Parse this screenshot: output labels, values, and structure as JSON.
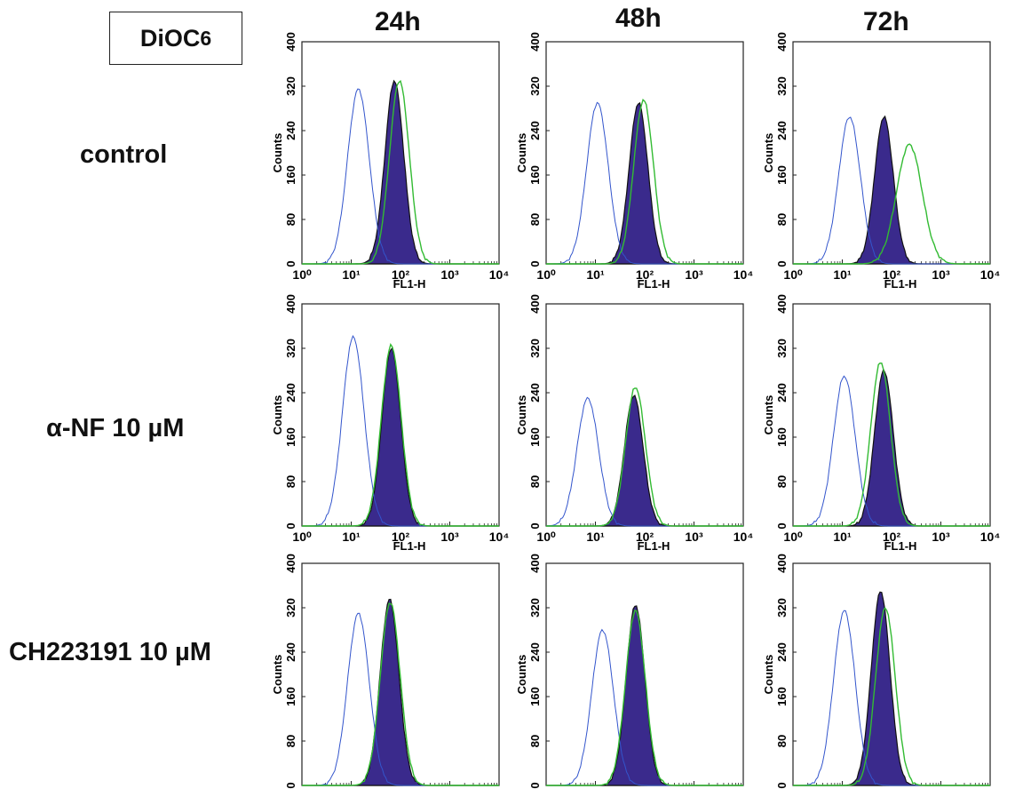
{
  "figure": {
    "stain_label": "DiOC",
    "stain_subscript": "6",
    "time_points": [
      "24h",
      "48h",
      "72h"
    ],
    "treatments": [
      "control",
      "α-NF 10 µM",
      "CH223191 10 µM"
    ]
  },
  "colors": {
    "unstained": "#3355cc",
    "treated_fill": "#3a2a8c",
    "treated_edge": "#111111",
    "reference_line": "#33bb33",
    "frame": "#222222"
  },
  "chart_data": [
    {
      "type": "area",
      "panel": "control-24h",
      "xlabel": "FL1-H",
      "ylabel": "Counts",
      "xscale": "log",
      "xlim": [
        1,
        10000
      ],
      "ylim": [
        0,
        400
      ],
      "x_ticks": [
        "10⁰",
        "10¹",
        "10²",
        "10³",
        "10⁴"
      ],
      "y_ticks": [
        "0",
        "80",
        "160",
        "240",
        "320",
        "400"
      ],
      "peaks": [
        {
          "name": "unstained",
          "center": 14,
          "height": 315
        },
        {
          "name": "treated",
          "center": 75,
          "height": 330
        },
        {
          "name": "reference",
          "center": 95,
          "height": 330
        }
      ]
    },
    {
      "type": "area",
      "panel": "control-48h",
      "xlabel": "FL1-H",
      "ylabel": "Counts",
      "xscale": "log",
      "xlim": [
        1,
        10000
      ],
      "ylim": [
        0,
        400
      ],
      "x_ticks": [
        "10⁰",
        "10¹",
        "10²",
        "10³",
        "10⁴"
      ],
      "y_ticks": [
        "0",
        "80",
        "160",
        "240",
        "320",
        "400"
      ],
      "peaks": [
        {
          "name": "unstained",
          "center": 11,
          "height": 290
        },
        {
          "name": "treated",
          "center": 75,
          "height": 290
        },
        {
          "name": "reference",
          "center": 95,
          "height": 295
        }
      ]
    },
    {
      "type": "area",
      "panel": "control-72h",
      "xlabel": "FL1-H",
      "ylabel": "Counts",
      "xscale": "log",
      "xlim": [
        1,
        10000
      ],
      "ylim": [
        0,
        400
      ],
      "x_ticks": [
        "10⁰",
        "10¹",
        "10²",
        "10³",
        "10⁴"
      ],
      "y_ticks": [
        "0",
        "80",
        "160",
        "240",
        "320",
        "400"
      ],
      "peaks": [
        {
          "name": "unstained",
          "center": 14,
          "height": 265
        },
        {
          "name": "treated",
          "center": 70,
          "height": 265
        },
        {
          "name": "reference",
          "center": 230,
          "height": 215
        }
      ]
    },
    {
      "type": "area",
      "panel": "anf-24h",
      "xlabel": "FL1-H",
      "ylabel": "Counts",
      "xscale": "log",
      "xlim": [
        1,
        10000
      ],
      "ylim": [
        0,
        400
      ],
      "x_ticks": [
        "10⁰",
        "10¹",
        "10²",
        "10³",
        "10⁴"
      ],
      "y_ticks": [
        "0",
        "80",
        "160",
        "240",
        "320",
        "400"
      ],
      "peaks": [
        {
          "name": "unstained",
          "center": 11,
          "height": 340
        },
        {
          "name": "treated",
          "center": 65,
          "height": 320
        },
        {
          "name": "reference",
          "center": 65,
          "height": 325
        }
      ]
    },
    {
      "type": "area",
      "panel": "anf-48h",
      "xlabel": "FL1-H",
      "ylabel": "Counts",
      "xscale": "log",
      "xlim": [
        1,
        10000
      ],
      "ylim": [
        0,
        400
      ],
      "x_ticks": [
        "10⁰",
        "10¹",
        "10²",
        "10³",
        "10⁴"
      ],
      "y_ticks": [
        "0",
        "80",
        "160",
        "240",
        "320",
        "400"
      ],
      "peaks": [
        {
          "name": "unstained",
          "center": 7,
          "height": 230
        },
        {
          "name": "treated",
          "center": 60,
          "height": 235
        },
        {
          "name": "reference",
          "center": 65,
          "height": 250
        }
      ]
    },
    {
      "type": "area",
      "panel": "anf-72h",
      "xlabel": "FL1-H",
      "ylabel": "Counts",
      "xscale": "log",
      "xlim": [
        1,
        10000
      ],
      "ylim": [
        0,
        400
      ],
      "x_ticks": [
        "10⁰",
        "10¹",
        "10²",
        "10³",
        "10⁴"
      ],
      "y_ticks": [
        "0",
        "80",
        "160",
        "240",
        "320",
        "400"
      ],
      "peaks": [
        {
          "name": "unstained",
          "center": 11,
          "height": 270
        },
        {
          "name": "treated",
          "center": 70,
          "height": 280
        },
        {
          "name": "reference",
          "center": 60,
          "height": 295
        }
      ]
    },
    {
      "type": "area",
      "panel": "ch-24h",
      "xlabel": "FL1-H",
      "ylabel": "Counts",
      "xscale": "log",
      "xlim": [
        1,
        10000
      ],
      "ylim": [
        0,
        400
      ],
      "x_ticks": [
        "10⁰",
        "10¹",
        "10²",
        "10³",
        "10⁴"
      ],
      "y_ticks": [
        "0",
        "80",
        "160",
        "240",
        "320",
        "400"
      ],
      "peaks": [
        {
          "name": "unstained",
          "center": 14,
          "height": 310
        },
        {
          "name": "treated",
          "center": 60,
          "height": 335
        },
        {
          "name": "reference",
          "center": 62,
          "height": 330
        }
      ]
    },
    {
      "type": "area",
      "panel": "ch-48h",
      "xlabel": "FL1-H",
      "ylabel": "Counts",
      "xscale": "log",
      "xlim": [
        1,
        10000
      ],
      "ylim": [
        0,
        400
      ],
      "x_ticks": [
        "10⁰",
        "10¹",
        "10²",
        "10³",
        "10⁴"
      ],
      "y_ticks": [
        "0",
        "80",
        "160",
        "240",
        "320",
        "400"
      ],
      "peaks": [
        {
          "name": "unstained",
          "center": 14,
          "height": 280
        },
        {
          "name": "treated",
          "center": 65,
          "height": 325
        },
        {
          "name": "reference",
          "center": 65,
          "height": 315
        }
      ]
    },
    {
      "type": "area",
      "panel": "ch-72h",
      "xlabel": "FL1-H",
      "ylabel": "Counts",
      "xscale": "log",
      "xlim": [
        1,
        10000
      ],
      "ylim": [
        0,
        400
      ],
      "x_ticks": [
        "10⁰",
        "10¹",
        "10²",
        "10³",
        "10⁴"
      ],
      "y_ticks": [
        "0",
        "80",
        "160",
        "240",
        "320",
        "400"
      ],
      "peaks": [
        {
          "name": "unstained",
          "center": 11,
          "height": 315
        },
        {
          "name": "treated",
          "center": 60,
          "height": 350
        },
        {
          "name": "reference",
          "center": 75,
          "height": 320
        }
      ]
    }
  ]
}
